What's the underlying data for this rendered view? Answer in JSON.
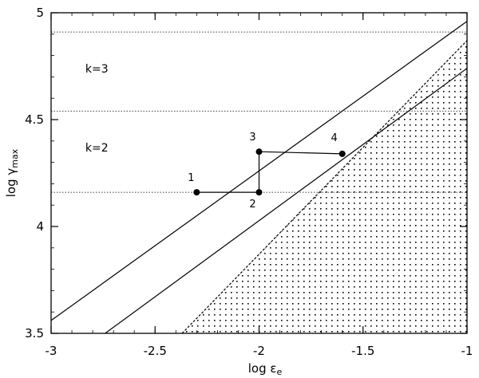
{
  "chart_data": {
    "type": "line",
    "xlabel": "log ε",
    "xlabel_sub": "e",
    "ylabel": "log γ",
    "ylabel_sub": "max",
    "xlim": [
      -3,
      -1
    ],
    "ylim": [
      3.5,
      5
    ],
    "x_ticks": [
      -3,
      -2.5,
      -2,
      -1.5,
      -1
    ],
    "x_tick_labels": [
      "-3",
      "-2.5",
      "-2",
      "-1.5",
      "-1"
    ],
    "y_ticks": [
      3.5,
      4,
      4.5,
      5
    ],
    "y_tick_labels": [
      "3.5",
      "4",
      "4.5",
      "5"
    ],
    "grid": false,
    "horizontal_dotted_lines": [
      4.16,
      4.54,
      4.91
    ],
    "region_labels": [
      {
        "text": "k=2",
        "x": -2.78,
        "y": 4.35
      },
      {
        "text": "k=3",
        "x": -2.78,
        "y": 4.72
      }
    ],
    "series": [
      {
        "style": "solid",
        "x": [
          -3.0,
          -1.0
        ],
        "y": [
          3.56,
          4.96
        ]
      },
      {
        "style": "solid",
        "x": [
          -2.74,
          -1.0
        ],
        "y": [
          3.5,
          4.74
        ]
      },
      {
        "style": "dashed",
        "x": [
          -2.37,
          -1.0
        ],
        "y": [
          3.5,
          4.87
        ]
      },
      {
        "style": "path-with-markers",
        "x": [
          -2.3,
          -2.0,
          -2.0,
          -1.6
        ],
        "y": [
          4.16,
          4.16,
          4.35,
          4.34
        ],
        "point_labels": [
          "1",
          "2",
          "3",
          "4"
        ]
      }
    ],
    "shaded_region": "below dashed line (dotted hatch)"
  }
}
